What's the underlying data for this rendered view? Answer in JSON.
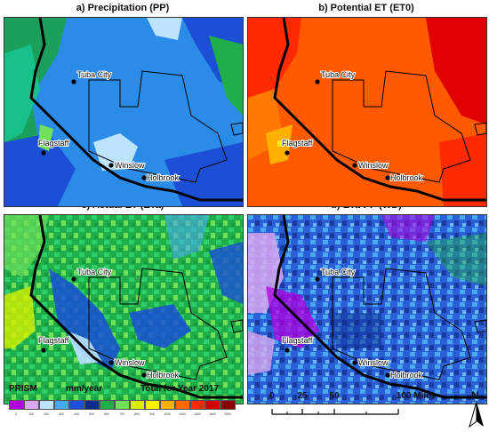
{
  "panels": [
    {
      "title": "a) Precipitation (PP)"
    },
    {
      "title": "b) Potential ET (ET0)"
    },
    {
      "title": "c) Actual ET (ETa)"
    },
    {
      "title": "d) ETa-PP (WD)"
    }
  ],
  "cities": [
    {
      "name": "Tuba City"
    },
    {
      "name": "Flagstaff"
    },
    {
      "name": "Winslow"
    },
    {
      "name": "Holbrook"
    }
  ],
  "legend": {
    "source": "PRISM",
    "units": "mm/year",
    "caption": "Total for Year 2017",
    "classes": [
      {
        "label": "0",
        "color": "#b000e0"
      },
      {
        "label": "100",
        "color": "#d9a8f0"
      },
      {
        "label": "200",
        "color": "#bde3ff"
      },
      {
        "label": "300",
        "color": "#4aa8f0"
      },
      {
        "label": "400",
        "color": "#1a4fd6"
      },
      {
        "label": "500",
        "color": "#0a2a8c"
      },
      {
        "label": "600",
        "color": "#1fae4a"
      },
      {
        "label": "700",
        "color": "#6fe05a"
      },
      {
        "label": "800",
        "color": "#d8f000"
      },
      {
        "label": "900",
        "color": "#fff200"
      },
      {
        "label": "1000",
        "color": "#ffb000"
      },
      {
        "label": "1200",
        "color": "#ff6a00"
      },
      {
        "label": "1400",
        "color": "#ff2a00"
      },
      {
        "label": "1600",
        "color": "#d00000"
      },
      {
        "label": "2000",
        "color": "#8b0000"
      }
    ]
  },
  "scalebar": {
    "labels": [
      "0",
      "25",
      "50",
      "100 Miles"
    ]
  },
  "north_arrow": {
    "label": "N"
  }
}
